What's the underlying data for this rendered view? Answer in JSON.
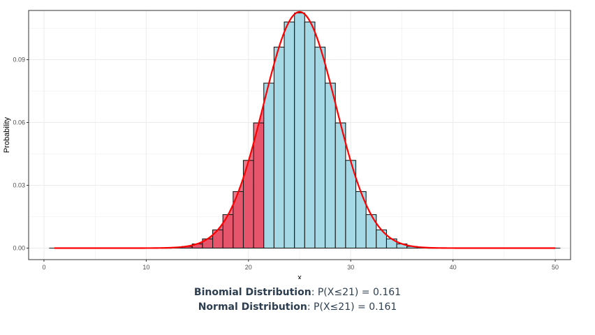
{
  "chart_data": {
    "type": "bar",
    "xlabel": "x",
    "ylabel": "Probability",
    "xlim": [
      -1.5,
      51.5
    ],
    "ylim": [
      -0.0055,
      0.1135
    ],
    "x_ticks": [
      0,
      10,
      20,
      30,
      40,
      50
    ],
    "y_ticks": [
      0.0,
      0.03,
      0.06,
      0.09
    ],
    "y_tick_labels": [
      "0.00",
      "0.03",
      "0.06",
      "0.09"
    ],
    "grid": true,
    "x": [
      1,
      2,
      3,
      4,
      5,
      6,
      7,
      8,
      9,
      10,
      11,
      12,
      13,
      14,
      15,
      16,
      17,
      18,
      19,
      20,
      21,
      22,
      23,
      24,
      25,
      26,
      27,
      28,
      29,
      30,
      31,
      32,
      33,
      34,
      35,
      36,
      37,
      38,
      39,
      40,
      41,
      42,
      43,
      44,
      45,
      46,
      47,
      48,
      49,
      50
    ],
    "values": [
      0.0,
      0.0,
      0.0,
      0.0,
      0.0,
      0.0,
      0.0,
      0.0,
      0.0,
      0.0,
      0.0,
      0.0001,
      0.0003,
      0.0008,
      0.002,
      0.0044,
      0.0087,
      0.016,
      0.027,
      0.0419,
      0.0598,
      0.0788,
      0.096,
      0.108,
      0.1123,
      0.108,
      0.096,
      0.0788,
      0.0598,
      0.0419,
      0.027,
      0.016,
      0.0087,
      0.0044,
      0.002,
      0.0008,
      0.0003,
      0.0001,
      0.0,
      0.0,
      0.0,
      0.0,
      0.0,
      0.0,
      0.0,
      0.0,
      0.0,
      0.0,
      0.0,
      0.0
    ],
    "highlight_max_x": 21,
    "normal_curve": {
      "mean": 25,
      "sd": 3.5355
    },
    "colors": {
      "bar_fill": "#a6d9e6",
      "bar_highlight": "#e64c66",
      "bar_stroke": "#1a1a1a",
      "curve": "#ff0000",
      "panel_border": "#333333",
      "grid": "#ebebeb"
    }
  },
  "caption": {
    "line1_label": "Binomial Distribution",
    "line1_value": ": P(X≤21) = 0.161",
    "line2_label": "Normal Distribution",
    "line2_value": ": P(X≤21) = 0.161"
  }
}
